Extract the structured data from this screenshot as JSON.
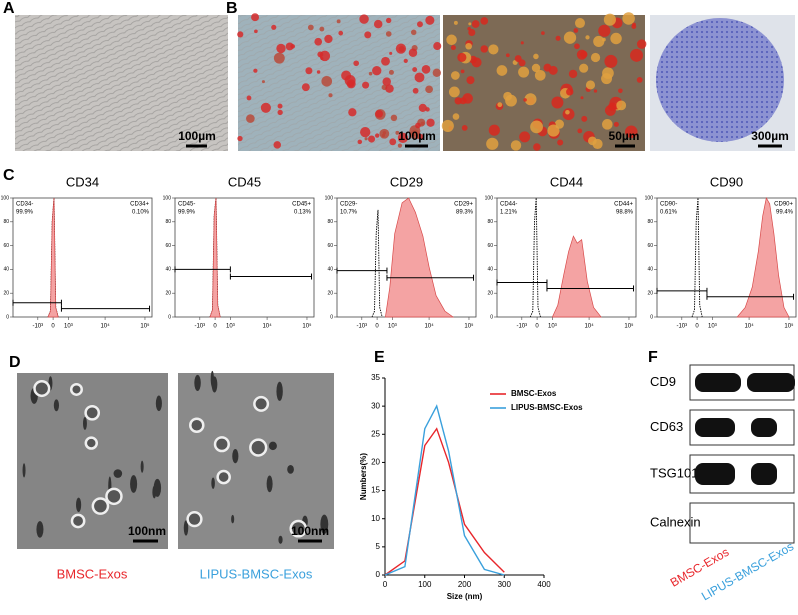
{
  "panel_a": {
    "label": "A",
    "scale_bar": "100µm"
  },
  "panel_b": {
    "label": "B",
    "scale_bars": [
      "100µm",
      "50µm",
      "300µm"
    ]
  },
  "panel_c": {
    "label": "C"
  },
  "panel_d": {
    "label": "D",
    "scale_bars": [
      "100nm",
      "100nm"
    ],
    "captions": [
      "BMSC-Exos",
      "LIPUS-BMSC-Exos"
    ],
    "caption_colors": [
      "#e8262b",
      "#3aa0dc"
    ]
  },
  "panel_e": {
    "label": "E"
  },
  "panel_f": {
    "label": "F",
    "rows": [
      "CD9",
      "CD63",
      "TSG101",
      "Calnexin"
    ],
    "lanes": [
      "BMSC-Exos",
      "LIPUS-BMSC-Exos"
    ],
    "lane_colors": [
      "#e8262b",
      "#3aa0dc"
    ]
  },
  "chart_data": [
    {
      "type": "flow-histogram",
      "title": "CD34",
      "xscale": "asinh",
      "xlim": [
        -5000,
        150000
      ],
      "xticks": [
        {
          "value": -1000,
          "label": "-10³"
        },
        0,
        {
          "value": 1000,
          "label": "10³"
        },
        {
          "value": 10000,
          "label": "10⁴"
        },
        {
          "value": 100000,
          "label": "10⁵"
        }
      ],
      "ylim": [
        0,
        100
      ],
      "yticks": [
        0,
        20,
        40,
        60,
        80,
        100
      ],
      "series": [
        {
          "color": "#000000",
          "style": "dotted",
          "x": [
            -300,
            -150,
            -50,
            50,
            150,
            300
          ],
          "values": [
            0,
            5,
            80,
            100,
            8,
            0
          ]
        },
        {
          "color": "#f4a3a3",
          "style": "filled",
          "x": [
            -300,
            -150,
            -50,
            50,
            150,
            300
          ],
          "values": [
            0,
            5,
            80,
            100,
            8,
            0
          ]
        }
      ],
      "gates": [
        {
          "label": "CD34-",
          "value": 99.9,
          "value_label": "99.9%",
          "range": [
            -5000,
            500
          ],
          "level": 12
        },
        {
          "label": "CD34+",
          "value": 0.1,
          "value_label": "0.10%",
          "range": [
            500,
            130000
          ],
          "level": 7
        }
      ]
    },
    {
      "type": "flow-histogram",
      "title": "CD45",
      "xscale": "asinh",
      "xlim": [
        -5000,
        150000
      ],
      "xticks": [
        {
          "value": -1000,
          "label": "-10³"
        },
        0,
        {
          "value": 1000,
          "label": "10³"
        },
        {
          "value": 10000,
          "label": "10⁴"
        },
        {
          "value": 100000,
          "label": "10⁵"
        }
      ],
      "ylim": [
        0,
        100
      ],
      "yticks": [
        0,
        20,
        40,
        60,
        80,
        100
      ],
      "series": [
        {
          "color": "#000000",
          "style": "dotted",
          "x": [
            -300,
            -150,
            -50,
            50,
            150,
            300
          ],
          "values": [
            0,
            6,
            85,
            100,
            10,
            0
          ]
        },
        {
          "color": "#f4a3a3",
          "style": "filled",
          "x": [
            -300,
            -150,
            -50,
            50,
            150,
            300
          ],
          "values": [
            0,
            6,
            85,
            100,
            10,
            0
          ]
        }
      ],
      "gates": [
        {
          "label": "CD45-",
          "value": 99.9,
          "value_label": "99.9%",
          "range": [
            -5000,
            1000
          ],
          "level": 40
        },
        {
          "label": "CD45+",
          "value": 0.13,
          "value_label": "0.13%",
          "range": [
            1000,
            130000
          ],
          "level": 34
        }
      ]
    },
    {
      "type": "flow-histogram",
      "title": "CD29",
      "xscale": "asinh",
      "xlim": [
        -5000,
        150000
      ],
      "xticks": [
        {
          "value": -1000,
          "label": "-10³"
        },
        0,
        {
          "value": 1000,
          "label": "10³"
        },
        {
          "value": 10000,
          "label": "10⁴"
        },
        {
          "value": 100000,
          "label": "10⁵"
        }
      ],
      "ylim": [
        0,
        100
      ],
      "yticks": [
        0,
        20,
        40,
        60,
        80,
        100
      ],
      "series": [
        {
          "color": "#000000",
          "style": "dotted",
          "x": [
            -300,
            -150,
            -50,
            50,
            150,
            300
          ],
          "values": [
            0,
            5,
            70,
            90,
            8,
            0
          ]
        },
        {
          "color": "#f4a3a3",
          "style": "filled",
          "x": [
            500,
            800,
            1200,
            2000,
            3000,
            4500,
            7000,
            10000,
            15000,
            25000,
            40000
          ],
          "values": [
            0,
            25,
            70,
            96,
            100,
            88,
            68,
            42,
            18,
            5,
            0
          ]
        }
      ],
      "gates": [
        {
          "label": "CD29-",
          "value": 10.7,
          "value_label": "10.7%",
          "range": [
            -5000,
            600
          ],
          "level": 39
        },
        {
          "label": "CD29+",
          "value": 89.3,
          "value_label": "89.3%",
          "range": [
            600,
            130000
          ],
          "level": 33
        }
      ]
    },
    {
      "type": "flow-histogram",
      "title": "CD44",
      "xscale": "asinh",
      "xlim": [
        -5000,
        150000
      ],
      "xticks": [
        {
          "value": -1000,
          "label": "-10³"
        },
        0,
        {
          "value": 1000,
          "label": "10³"
        },
        {
          "value": 10000,
          "label": "10⁴"
        },
        {
          "value": 100000,
          "label": "10⁵"
        }
      ],
      "ylim": [
        0,
        100
      ],
      "yticks": [
        0,
        20,
        40,
        60,
        80,
        100
      ],
      "series": [
        {
          "color": "#000000",
          "style": "dotted",
          "x": [
            -400,
            -250,
            -150,
            -50,
            50,
            200
          ],
          "values": [
            0,
            5,
            80,
            100,
            8,
            0
          ]
        },
        {
          "color": "#f4a3a3",
          "style": "filled",
          "x": [
            1000,
            1500,
            2200,
            3000,
            4000,
            5000,
            6500,
            9000,
            13000,
            20000
          ],
          "values": [
            0,
            10,
            35,
            55,
            68,
            62,
            65,
            30,
            8,
            0
          ]
        }
      ],
      "gates": [
        {
          "label": "CD44-",
          "value": 1.21,
          "value_label": "1.21%",
          "range": [
            -5000,
            600
          ],
          "level": 29
        },
        {
          "label": "CD44+",
          "value": 98.8,
          "value_label": "98.8%",
          "range": [
            600,
            130000
          ],
          "level": 24
        }
      ]
    },
    {
      "type": "flow-histogram",
      "title": "CD90",
      "xscale": "asinh",
      "xlim": [
        -5000,
        150000
      ],
      "xticks": [
        {
          "value": -1000,
          "label": "-10³"
        },
        0,
        {
          "value": 1000,
          "label": "10³"
        },
        {
          "value": 10000,
          "label": "10⁴"
        },
        {
          "value": 100000,
          "label": "10⁵"
        }
      ],
      "ylim": [
        0,
        100
      ],
      "yticks": [
        0,
        20,
        40,
        60,
        80,
        100
      ],
      "series": [
        {
          "color": "#000000",
          "style": "dotted",
          "x": [
            -300,
            -150,
            -50,
            50,
            150,
            300
          ],
          "values": [
            0,
            6,
            80,
            100,
            10,
            0
          ]
        },
        {
          "color": "#f4a3a3",
          "style": "filled",
          "x": [
            5000,
            8000,
            12000,
            17000,
            22000,
            27000,
            33000,
            42000,
            55000,
            75000,
            100000
          ],
          "values": [
            0,
            8,
            25,
            55,
            85,
            100,
            95,
            70,
            35,
            8,
            0
          ]
        }
      ],
      "gates": [
        {
          "label": "CD90-",
          "value": 0.61,
          "value_label": "0.61%",
          "range": [
            -5000,
            600
          ],
          "level": 22
        },
        {
          "label": "CD90+",
          "value": 99.4,
          "value_label": "99.4%",
          "range": [
            600,
            130000
          ],
          "level": 17
        }
      ]
    },
    {
      "type": "line",
      "xlabel": "Size (nm)",
      "ylabel": "Numbers(%)",
      "x": [
        0,
        50,
        100,
        130,
        160,
        200,
        250,
        300
      ],
      "series": [
        {
          "name": "BMSC-Exos",
          "color": "#e8262b",
          "values": [
            0,
            2.5,
            23,
            26,
            20,
            9,
            4,
            0.5
          ]
        },
        {
          "name": "LIPUS-BMSC-Exos",
          "color": "#3aa0dc",
          "values": [
            0,
            1.5,
            26,
            30,
            22,
            7,
            1,
            0
          ]
        }
      ],
      "xlim": [
        0,
        400
      ],
      "xticks": [
        0,
        100,
        200,
        300,
        400
      ],
      "ylim": [
        0,
        35
      ],
      "yticks": [
        0,
        5,
        10,
        15,
        20,
        25,
        30,
        35
      ],
      "legend": "upper right"
    }
  ]
}
